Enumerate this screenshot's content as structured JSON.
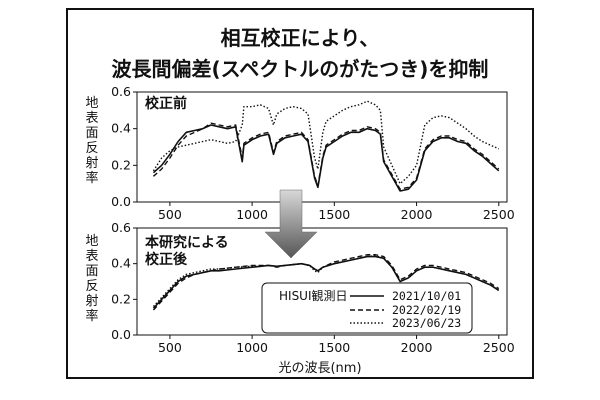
{
  "figure": {
    "title_line1": "相互校正により、",
    "title_line2": "波長間偏差(スペクトルのがたつき)を抑制",
    "ylabel": "地表面反射率",
    "xlabel": "光の波長(nm)"
  },
  "chart_data": [
    {
      "type": "line",
      "panel_title": "校正前",
      "xlim": [
        300,
        2550
      ],
      "ylim": [
        0.0,
        0.6
      ],
      "x_ticks": [
        500,
        1000,
        1500,
        2000,
        2500
      ],
      "y_ticks": [
        0.0,
        0.2,
        0.4,
        0.6
      ],
      "series": [
        {
          "name": "2021/10/01",
          "style": "solid",
          "x": [
            400,
            450,
            500,
            550,
            600,
            650,
            700,
            750,
            800,
            850,
            900,
            940,
            950,
            1000,
            1050,
            1100,
            1130,
            1150,
            1200,
            1250,
            1300,
            1340,
            1380,
            1400,
            1430,
            1450,
            1500,
            1550,
            1600,
            1650,
            1700,
            1750,
            1780,
            1800,
            1850,
            1900,
            1950,
            2000,
            2050,
            2100,
            2150,
            2200,
            2250,
            2300,
            2350,
            2400,
            2450,
            2500
          ],
          "y": [
            0.16,
            0.2,
            0.26,
            0.33,
            0.38,
            0.39,
            0.4,
            0.42,
            0.41,
            0.4,
            0.41,
            0.22,
            0.31,
            0.34,
            0.36,
            0.37,
            0.26,
            0.32,
            0.35,
            0.36,
            0.37,
            0.33,
            0.13,
            0.08,
            0.24,
            0.3,
            0.33,
            0.36,
            0.38,
            0.38,
            0.4,
            0.39,
            0.37,
            0.22,
            0.14,
            0.06,
            0.07,
            0.12,
            0.28,
            0.33,
            0.35,
            0.35,
            0.33,
            0.32,
            0.28,
            0.25,
            0.21,
            0.17
          ]
        },
        {
          "name": "2022/02/19",
          "style": "dashed",
          "x": [
            400,
            450,
            500,
            550,
            600,
            650,
            700,
            750,
            800,
            850,
            900,
            940,
            950,
            1000,
            1050,
            1100,
            1130,
            1150,
            1200,
            1250,
            1300,
            1340,
            1380,
            1400,
            1430,
            1450,
            1500,
            1550,
            1600,
            1650,
            1700,
            1750,
            1780,
            1800,
            1850,
            1900,
            1950,
            2000,
            2050,
            2100,
            2150,
            2200,
            2250,
            2300,
            2350,
            2400,
            2450,
            2500
          ],
          "y": [
            0.14,
            0.18,
            0.24,
            0.31,
            0.36,
            0.38,
            0.4,
            0.43,
            0.42,
            0.41,
            0.42,
            0.24,
            0.32,
            0.35,
            0.37,
            0.38,
            0.27,
            0.33,
            0.36,
            0.37,
            0.38,
            0.34,
            0.14,
            0.09,
            0.25,
            0.31,
            0.34,
            0.37,
            0.39,
            0.39,
            0.41,
            0.4,
            0.38,
            0.23,
            0.15,
            0.07,
            0.08,
            0.13,
            0.29,
            0.34,
            0.36,
            0.36,
            0.34,
            0.33,
            0.29,
            0.26,
            0.22,
            0.18
          ]
        },
        {
          "name": "2023/06/23",
          "style": "dotted",
          "x": [
            400,
            450,
            500,
            550,
            600,
            650,
            700,
            750,
            800,
            850,
            900,
            940,
            950,
            1000,
            1050,
            1100,
            1130,
            1150,
            1200,
            1250,
            1300,
            1340,
            1380,
            1400,
            1430,
            1450,
            1500,
            1550,
            1600,
            1650,
            1700,
            1750,
            1780,
            1800,
            1850,
            1900,
            1950,
            2000,
            2050,
            2100,
            2150,
            2200,
            2250,
            2300,
            2350,
            2400,
            2450,
            2500
          ],
          "y": [
            0.17,
            0.24,
            0.28,
            0.3,
            0.31,
            0.32,
            0.33,
            0.34,
            0.33,
            0.32,
            0.33,
            0.42,
            0.52,
            0.52,
            0.53,
            0.51,
            0.42,
            0.48,
            0.51,
            0.52,
            0.51,
            0.48,
            0.24,
            0.18,
            0.38,
            0.44,
            0.47,
            0.5,
            0.52,
            0.53,
            0.55,
            0.53,
            0.5,
            0.3,
            0.2,
            0.1,
            0.14,
            0.2,
            0.42,
            0.46,
            0.47,
            0.46,
            0.43,
            0.4,
            0.36,
            0.33,
            0.31,
            0.29
          ]
        }
      ]
    },
    {
      "type": "line",
      "panel_title_line1": "本研究による",
      "panel_title_line2": "校正後",
      "xlim": [
        300,
        2550
      ],
      "ylim": [
        0.0,
        0.6
      ],
      "x_ticks": [
        500,
        1000,
        1500,
        2000,
        2500
      ],
      "y_ticks": [
        0.0,
        0.2,
        0.4,
        0.6
      ],
      "legend_title": "HISUI観測日",
      "legend_position": "bottom-right",
      "series": [
        {
          "name": "2021/10/01",
          "style": "solid",
          "x": [
            400,
            450,
            500,
            550,
            600,
            650,
            700,
            750,
            800,
            900,
            1000,
            1100,
            1150,
            1200,
            1300,
            1350,
            1380,
            1400,
            1430,
            1500,
            1600,
            1700,
            1750,
            1800,
            1850,
            1900,
            1950,
            2000,
            2050,
            2100,
            2150,
            2200,
            2250,
            2300,
            2350,
            2400,
            2450,
            2500
          ],
          "y": [
            0.15,
            0.2,
            0.25,
            0.3,
            0.33,
            0.34,
            0.35,
            0.36,
            0.36,
            0.37,
            0.38,
            0.39,
            0.385,
            0.39,
            0.4,
            0.39,
            0.37,
            0.36,
            0.38,
            0.4,
            0.42,
            0.44,
            0.44,
            0.43,
            0.38,
            0.3,
            0.32,
            0.36,
            0.38,
            0.38,
            0.37,
            0.36,
            0.35,
            0.34,
            0.32,
            0.3,
            0.28,
            0.25
          ]
        },
        {
          "name": "2022/02/19",
          "style": "dashed",
          "x": [
            400,
            450,
            500,
            550,
            600,
            650,
            700,
            750,
            800,
            900,
            1000,
            1100,
            1150,
            1200,
            1300,
            1350,
            1380,
            1400,
            1430,
            1500,
            1600,
            1700,
            1750,
            1800,
            1850,
            1900,
            1950,
            2000,
            2050,
            2100,
            2150,
            2200,
            2250,
            2300,
            2350,
            2400,
            2450,
            2500
          ],
          "y": [
            0.14,
            0.19,
            0.24,
            0.29,
            0.32,
            0.34,
            0.35,
            0.36,
            0.37,
            0.38,
            0.39,
            0.39,
            0.38,
            0.39,
            0.4,
            0.39,
            0.37,
            0.36,
            0.38,
            0.41,
            0.43,
            0.45,
            0.45,
            0.44,
            0.39,
            0.31,
            0.33,
            0.37,
            0.39,
            0.39,
            0.38,
            0.37,
            0.36,
            0.35,
            0.33,
            0.31,
            0.29,
            0.26
          ]
        },
        {
          "name": "2023/06/23",
          "style": "dotted",
          "x": [
            400,
            450,
            500,
            550,
            600,
            650,
            700,
            750,
            800,
            900,
            1000,
            1100,
            1150,
            1200,
            1300,
            1350,
            1380,
            1400,
            1430,
            1500,
            1600,
            1700,
            1750,
            1800,
            1850,
            1900,
            1950,
            2000,
            2050,
            2100,
            2150,
            2200,
            2250,
            2300,
            2350,
            2400,
            2450,
            2500
          ],
          "y": [
            0.16,
            0.21,
            0.26,
            0.31,
            0.34,
            0.35,
            0.36,
            0.37,
            0.37,
            0.38,
            0.385,
            0.39,
            0.385,
            0.39,
            0.4,
            0.39,
            0.36,
            0.35,
            0.38,
            0.4,
            0.42,
            0.44,
            0.445,
            0.43,
            0.38,
            0.3,
            0.32,
            0.36,
            0.38,
            0.38,
            0.37,
            0.36,
            0.35,
            0.34,
            0.32,
            0.3,
            0.28,
            0.25
          ]
        }
      ]
    }
  ]
}
